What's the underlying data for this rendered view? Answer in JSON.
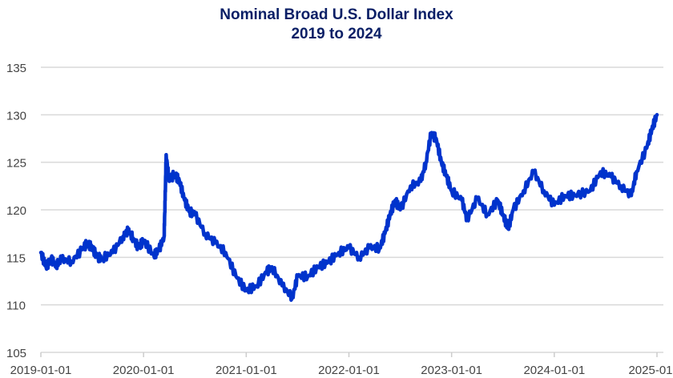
{
  "chart_data": {
    "type": "line",
    "title": "Nominal Broad U.S. Dollar Index",
    "subtitle": "2019 to 2024",
    "xlabel": "",
    "ylabel": "",
    "xlim": [
      2019.0,
      2025.0
    ],
    "ylim": [
      105,
      135
    ],
    "yticks": [
      105,
      110,
      115,
      120,
      125,
      130,
      135
    ],
    "xticks": [
      {
        "value": 2019,
        "label": "2019-01-01"
      },
      {
        "value": 2020,
        "label": "2020-01-01"
      },
      {
        "value": 2021,
        "label": "2021-01-01"
      },
      {
        "value": 2022,
        "label": "2022-01-01"
      },
      {
        "value": 2023,
        "label": "2023-01-01"
      },
      {
        "value": 2024,
        "label": "2024-01-01"
      },
      {
        "value": 2025,
        "label": "2025-01"
      }
    ],
    "grid": true,
    "series": [
      {
        "name": "Nominal Broad U.S. Dollar Index",
        "color": "#0033cc",
        "x": [
          2019.0,
          2019.05,
          2019.1,
          2019.15,
          2019.2,
          2019.3,
          2019.4,
          2019.45,
          2019.5,
          2019.55,
          2019.6,
          2019.7,
          2019.8,
          2019.85,
          2019.9,
          2019.95,
          2020.0,
          2020.1,
          2020.15,
          2020.2,
          2020.21,
          2020.22,
          2020.25,
          2020.3,
          2020.35,
          2020.4,
          2020.45,
          2020.5,
          2020.6,
          2020.7,
          2020.8,
          2020.9,
          2021.0,
          2021.1,
          2021.2,
          2021.25,
          2021.35,
          2021.45,
          2021.5,
          2021.6,
          2021.7,
          2021.8,
          2021.9,
          2022.0,
          2022.1,
          2022.2,
          2022.3,
          2022.35,
          2022.4,
          2022.45,
          2022.5,
          2022.6,
          2022.7,
          2022.75,
          2022.8,
          2022.85,
          2022.9,
          2022.95,
          2023.0,
          2023.1,
          2023.15,
          2023.25,
          2023.35,
          2023.45,
          2023.5,
          2023.55,
          2023.6,
          2023.7,
          2023.8,
          2023.9,
          2024.0,
          2024.1,
          2024.2,
          2024.35,
          2024.45,
          2024.55,
          2024.65,
          2024.75,
          2024.8,
          2024.9,
          2024.95,
          2025.0
        ],
        "values": [
          115.5,
          114.0,
          114.8,
          114.2,
          114.8,
          114.6,
          115.8,
          116.5,
          116.0,
          115.0,
          114.9,
          115.5,
          117.2,
          117.8,
          117.0,
          116.0,
          116.8,
          115.2,
          115.8,
          117.2,
          121.0,
          125.8,
          123.0,
          123.8,
          123.0,
          121.0,
          119.8,
          119.5,
          117.5,
          116.5,
          115.5,
          113.0,
          111.5,
          112.0,
          113.5,
          114.0,
          112.0,
          110.8,
          113.0,
          113.0,
          114.0,
          114.5,
          115.5,
          116.0,
          115.0,
          116.0,
          116.0,
          117.5,
          119.5,
          121.0,
          120.0,
          122.5,
          123.0,
          125.0,
          128.0,
          127.5,
          125.0,
          123.5,
          122.0,
          121.0,
          119.0,
          121.2,
          119.5,
          121.0,
          119.5,
          118.0,
          120.0,
          122.0,
          124.0,
          122.0,
          120.5,
          121.5,
          121.5,
          122.0,
          124.0,
          123.5,
          122.5,
          121.5,
          124.0,
          126.5,
          128.5,
          130.0
        ]
      }
    ]
  }
}
